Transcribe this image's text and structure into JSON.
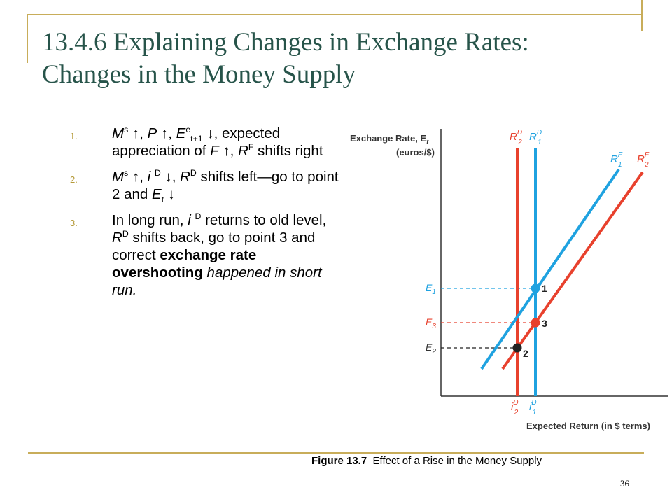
{
  "slide": {
    "title_line1": "13.4.6 Explaining Changes in Exchange Rates:",
    "title_line2": "Changes in the Money Supply",
    "page_number": "36"
  },
  "list": [
    {
      "number": "1.",
      "ms": "M",
      "ms_sup": "s",
      "sep1": ", ",
      "p": "P",
      "sep2": ", ",
      "e": "E",
      "e_sup": "e",
      "e_sub": "t+1",
      "sep3": ",",
      "text_a": "expected appreciation of",
      "f": "F",
      "sep4": ", ",
      "rf": "R",
      "rf_sup": "F",
      "text_b": " shifts right"
    },
    {
      "number": "2.",
      "ms": "M",
      "ms_sup": "s",
      "sep1": ", ",
      "i": "i ",
      "i_sup": "D",
      "sep2": ", ",
      "rd": "R",
      "rd_sup": "D",
      "text_a": " shifts left—go to point 2 and ",
      "et": "E",
      "et_sub": "t"
    },
    {
      "number": "3.",
      "text_a": "In long run, ",
      "i": "i ",
      "i_sup": "D",
      "text_b": " returns to old level, ",
      "rd": "R",
      "rd_sup": "D",
      "text_c": " shifts back, go to point 3 and correct ",
      "bold": "exchange rate overshooting",
      "italic_end": " happened in short run."
    }
  ],
  "diagram": {
    "y_axis_label_line1": "Exchange Rate, E",
    "y_axis_label_sub": "t",
    "y_axis_label_line2": "(euros/$)",
    "x_axis_label": "Expected Return (in $ terms)",
    "labels": {
      "rd2": "R",
      "rd2_sup": "D",
      "rd2_sub": "2",
      "rd1": "R",
      "rd1_sup": "D",
      "rd1_sub": "1",
      "rf1": "R",
      "rf1_sup": "F",
      "rf1_sub": "1",
      "rf2": "R",
      "rf2_sup": "F",
      "rf2_sub": "2",
      "e1": "E",
      "e1_sub": "1",
      "e3": "E",
      "e3_sub": "3",
      "e2": "E",
      "e2_sub": "2",
      "id2": "i",
      "id2_sup": "D",
      "id2_sub": "2",
      "id1": "i",
      "id1_sup": "D",
      "id1_sub": "1",
      "p1": "1",
      "p2": "2",
      "p3": "3"
    },
    "colors": {
      "blue": "#1fa2e0",
      "red": "#e8412d",
      "black": "#222222",
      "axis": "#333333"
    }
  },
  "caption": {
    "fig": "Figure 13.7",
    "text": "  Effect of a Rise in the Money Supply"
  }
}
